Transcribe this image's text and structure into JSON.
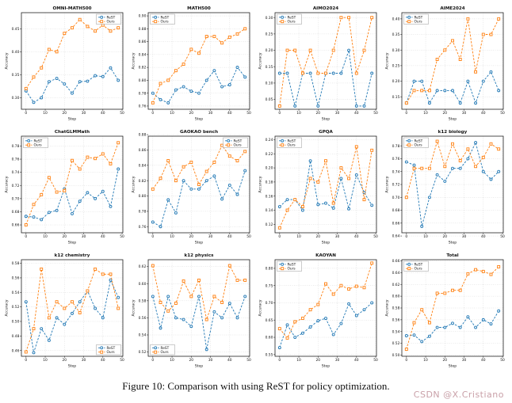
{
  "caption": "Figure 10: Comparison with using ReST for policy optimization.",
  "watermark": "CSDN @X.Cristiano",
  "colors": {
    "rest": "#1f77b4",
    "ours": "#ff7f0e",
    "grid": "#c8c8c8",
    "spine": "#222222"
  },
  "chart_data": [
    {
      "type": "line",
      "title": "OMNI-MATH500",
      "xlabel": "Step",
      "ylabel": "Accuracy",
      "x": [
        0,
        4,
        8,
        12,
        16,
        20,
        24,
        28,
        32,
        36,
        40,
        44,
        48
      ],
      "xticks": [
        0,
        10,
        20,
        30,
        40,
        50
      ],
      "yticks": [
        0.3,
        0.35,
        0.4,
        0.45
      ],
      "ylim": [
        0.275,
        0.485
      ],
      "legend_pos": "top-right",
      "series": [
        {
          "name": "ReST",
          "color": "#1f77b4",
          "marker": "circle",
          "values": [
            0.315,
            0.29,
            0.3,
            0.335,
            0.342,
            0.33,
            0.31,
            0.335,
            0.336,
            0.348,
            0.346,
            0.365,
            0.338
          ]
        },
        {
          "name": "Ours",
          "color": "#ff7f0e",
          "marker": "square",
          "values": [
            0.32,
            0.345,
            0.365,
            0.405,
            0.4,
            0.44,
            0.452,
            0.47,
            0.455,
            0.445,
            0.458,
            0.445,
            0.452
          ]
        }
      ]
    },
    {
      "type": "line",
      "title": "MATH500",
      "xlabel": "Step",
      "ylabel": "Accuracy",
      "x": [
        0,
        4,
        8,
        12,
        16,
        20,
        24,
        28,
        32,
        36,
        40,
        44,
        48
      ],
      "xticks": [
        0,
        10,
        20,
        30,
        40,
        50
      ],
      "yticks": [
        0.76,
        0.78,
        0.8,
        0.82,
        0.84,
        0.86,
        0.88,
        0.9
      ],
      "ylim": [
        0.755,
        0.905
      ],
      "legend_pos": "top-left",
      "series": [
        {
          "name": "ReST",
          "color": "#1f77b4",
          "marker": "circle",
          "values": [
            0.78,
            0.77,
            0.765,
            0.785,
            0.79,
            0.783,
            0.78,
            0.8,
            0.815,
            0.79,
            0.793,
            0.82,
            0.805
          ]
        },
        {
          "name": "Ours",
          "color": "#ff7f0e",
          "marker": "square",
          "values": [
            0.765,
            0.795,
            0.8,
            0.815,
            0.825,
            0.848,
            0.842,
            0.868,
            0.868,
            0.858,
            0.867,
            0.872,
            0.88
          ]
        }
      ]
    },
    {
      "type": "line",
      "title": "AIMO2024",
      "xlabel": "Step",
      "ylabel": "Accuracy",
      "x": [
        0,
        4,
        8,
        12,
        16,
        20,
        24,
        28,
        32,
        36,
        40,
        44,
        48
      ],
      "xticks": [
        0,
        10,
        20,
        30,
        40,
        50
      ],
      "yticks": [
        0.05,
        0.1,
        0.15,
        0.2,
        0.25,
        0.3
      ],
      "ylim": [
        0.02,
        0.315
      ],
      "legend_pos": "top-left",
      "series": [
        {
          "name": "ReST",
          "color": "#1f77b4",
          "marker": "circle",
          "values": [
            0.13,
            0.13,
            0.03,
            0.13,
            0.13,
            0.03,
            0.13,
            0.13,
            0.13,
            0.2,
            0.03,
            0.03,
            0.13
          ]
        },
        {
          "name": "Ours",
          "color": "#ff7f0e",
          "marker": "square",
          "values": [
            0.03,
            0.2,
            0.2,
            0.13,
            0.2,
            0.13,
            0.13,
            0.2,
            0.3,
            0.3,
            0.13,
            0.2,
            0.3
          ]
        }
      ]
    },
    {
      "type": "line",
      "title": "AIME2024",
      "xlabel": "Step",
      "ylabel": "Accuracy",
      "x": [
        0,
        4,
        8,
        12,
        16,
        20,
        24,
        28,
        32,
        36,
        40,
        44,
        48
      ],
      "xticks": [
        0,
        10,
        20,
        30,
        40,
        50
      ],
      "yticks": [
        0.15,
        0.2,
        0.25,
        0.3,
        0.35,
        0.4
      ],
      "ylim": [
        0.11,
        0.42
      ],
      "legend_pos": "top-left",
      "series": [
        {
          "name": "ReST",
          "color": "#1f77b4",
          "marker": "circle",
          "values": [
            0.13,
            0.2,
            0.2,
            0.13,
            0.17,
            0.17,
            0.17,
            0.13,
            0.2,
            0.13,
            0.2,
            0.23,
            0.17
          ]
        },
        {
          "name": "Ours",
          "color": "#ff7f0e",
          "marker": "square",
          "values": [
            0.13,
            0.17,
            0.17,
            0.17,
            0.27,
            0.3,
            0.33,
            0.27,
            0.4,
            0.23,
            0.35,
            0.35,
            0.4
          ]
        }
      ]
    },
    {
      "type": "line",
      "title": "ChatGLMMath",
      "xlabel": "Step",
      "ylabel": "Accuracy",
      "x": [
        0,
        4,
        8,
        12,
        16,
        20,
        24,
        28,
        32,
        36,
        40,
        44,
        48
      ],
      "xticks": [
        0,
        10,
        20,
        30,
        40,
        50
      ],
      "yticks": [
        0.66,
        0.68,
        0.7,
        0.72,
        0.74,
        0.76,
        0.78
      ],
      "ylim": [
        0.648,
        0.795
      ],
      "legend_pos": "top-left",
      "series": [
        {
          "name": "ReST",
          "color": "#1f77b4",
          "marker": "circle",
          "values": [
            0.673,
            0.672,
            0.668,
            0.679,
            0.682,
            0.715,
            0.677,
            0.696,
            0.709,
            0.7,
            0.711,
            0.688,
            0.745
          ]
        },
        {
          "name": "Ours",
          "color": "#ff7f0e",
          "marker": "square",
          "values": [
            0.66,
            0.691,
            0.706,
            0.732,
            0.71,
            0.712,
            0.758,
            0.745,
            0.763,
            0.761,
            0.768,
            0.753,
            0.785
          ]
        }
      ]
    },
    {
      "type": "line",
      "title": "GAOKAO bench",
      "xlabel": "Step",
      "ylabel": "Accuracy",
      "x": [
        0,
        4,
        8,
        12,
        16,
        20,
        24,
        28,
        32,
        36,
        40,
        44,
        48
      ],
      "xticks": [
        0,
        10,
        20,
        30,
        40,
        50
      ],
      "yticks": [
        0.76,
        0.78,
        0.8,
        0.82,
        0.84,
        0.86,
        0.88
      ],
      "ylim": [
        0.752,
        0.878
      ],
      "legend_pos": "top-right",
      "series": [
        {
          "name": "ReST",
          "color": "#1f77b4",
          "marker": "circle",
          "values": [
            0.766,
            0.76,
            0.795,
            0.778,
            0.82,
            0.809,
            0.809,
            0.82,
            0.826,
            0.796,
            0.814,
            0.802,
            0.833
          ]
        },
        {
          "name": "Ours",
          "color": "#ff7f0e",
          "marker": "square",
          "values": [
            0.809,
            0.823,
            0.846,
            0.82,
            0.838,
            0.844,
            0.815,
            0.832,
            0.844,
            0.866,
            0.852,
            0.846,
            0.858
          ]
        }
      ]
    },
    {
      "type": "line",
      "title": "GPQA",
      "xlabel": "Step",
      "ylabel": "Accuracy",
      "x": [
        0,
        4,
        8,
        12,
        16,
        20,
        24,
        28,
        32,
        36,
        40,
        44,
        48
      ],
      "xticks": [
        0,
        10,
        20,
        30,
        40,
        50
      ],
      "yticks": [
        0.12,
        0.14,
        0.16,
        0.18,
        0.2,
        0.22,
        0.24
      ],
      "ylim": [
        0.108,
        0.245
      ],
      "legend_pos": "top-left",
      "series": [
        {
          "name": "ReST",
          "color": "#1f77b4",
          "marker": "circle",
          "values": [
            0.145,
            0.155,
            0.155,
            0.14,
            0.21,
            0.148,
            0.15,
            0.143,
            0.185,
            0.142,
            0.19,
            0.165,
            0.147
          ]
        },
        {
          "name": "Ours",
          "color": "#ff7f0e",
          "marker": "square",
          "values": [
            0.115,
            0.14,
            0.155,
            0.145,
            0.185,
            0.18,
            0.21,
            0.15,
            0.2,
            0.185,
            0.23,
            0.155,
            0.225
          ]
        }
      ]
    },
    {
      "type": "line",
      "title": "k12 biology",
      "xlabel": "Step",
      "ylabel": "Accuracy",
      "x": [
        0,
        4,
        8,
        12,
        16,
        20,
        24,
        28,
        32,
        36,
        40,
        44,
        48
      ],
      "xticks": [
        0,
        10,
        20,
        30,
        40,
        50
      ],
      "yticks": [
        0.64,
        0.66,
        0.68,
        0.7,
        0.72,
        0.74,
        0.76,
        0.78
      ],
      "ylim": [
        0.645,
        0.795
      ],
      "legend_pos": "top-left",
      "series": [
        {
          "name": "ReST",
          "color": "#1f77b4",
          "marker": "circle",
          "values": [
            0.755,
            0.75,
            0.655,
            0.7,
            0.735,
            0.725,
            0.745,
            0.745,
            0.76,
            0.785,
            0.74,
            0.728,
            0.74
          ]
        },
        {
          "name": "Ours",
          "color": "#ff7f0e",
          "marker": "square",
          "values": [
            0.7,
            0.745,
            0.745,
            0.745,
            0.787,
            0.748,
            0.783,
            0.757,
            0.775,
            0.748,
            0.762,
            0.783,
            0.775
          ]
        }
      ]
    },
    {
      "type": "line",
      "title": "k12 chemistry",
      "xlabel": "Step",
      "ylabel": "Accuracy",
      "x": [
        0,
        4,
        8,
        12,
        16,
        20,
        24,
        28,
        32,
        36,
        40,
        44,
        48
      ],
      "xticks": [
        0,
        10,
        20,
        30,
        40,
        50
      ],
      "yticks": [
        0.46,
        0.48,
        0.5,
        0.52,
        0.54,
        0.56,
        0.58
      ],
      "ylim": [
        0.452,
        0.585
      ],
      "legend_pos": "bottom-right",
      "series": [
        {
          "name": "ReST",
          "color": "#1f77b4",
          "marker": "circle",
          "values": [
            0.527,
            0.457,
            0.49,
            0.474,
            0.505,
            0.496,
            0.511,
            0.527,
            0.542,
            0.518,
            0.505,
            0.557,
            0.533
          ]
        },
        {
          "name": "Ours",
          "color": "#ff7f0e",
          "marker": "square",
          "values": [
            0.458,
            0.49,
            0.572,
            0.505,
            0.527,
            0.518,
            0.527,
            0.512,
            0.542,
            0.572,
            0.565,
            0.565,
            0.518
          ]
        }
      ]
    },
    {
      "type": "line",
      "title": "k12 physics",
      "xlabel": "Step",
      "ylabel": "Accuracy",
      "x": [
        0,
        4,
        8,
        12,
        16,
        20,
        24,
        28,
        32,
        36,
        40,
        44,
        48
      ],
      "xticks": [
        0,
        10,
        20,
        30,
        40,
        50
      ],
      "yticks": [
        0.52,
        0.54,
        0.56,
        0.58,
        0.6,
        0.62
      ],
      "ylim": [
        0.515,
        0.628
      ],
      "legend_pos": "bottom-left",
      "series": [
        {
          "name": "ReST",
          "color": "#1f77b4",
          "marker": "circle",
          "values": [
            0.585,
            0.548,
            0.585,
            0.56,
            0.558,
            0.55,
            0.585,
            0.523,
            0.567,
            0.56,
            0.577,
            0.56,
            0.585
          ]
        },
        {
          "name": "Ours",
          "color": "#ff7f0e",
          "marker": "square",
          "values": [
            0.621,
            0.578,
            0.568,
            0.577,
            0.603,
            0.585,
            0.604,
            0.558,
            0.585,
            0.578,
            0.621,
            0.604,
            0.604
          ]
        }
      ]
    },
    {
      "type": "line",
      "title": "KAOYAN",
      "xlabel": "Step",
      "ylabel": "Accuracy",
      "x": [
        0,
        4,
        8,
        12,
        16,
        20,
        24,
        28,
        32,
        36,
        40,
        44,
        48
      ],
      "xticks": [
        0,
        10,
        20,
        30,
        40,
        50
      ],
      "yticks": [
        0.55,
        0.6,
        0.65,
        0.7,
        0.75,
        0.8
      ],
      "ylim": [
        0.545,
        0.825
      ],
      "legend_pos": "top-left",
      "series": [
        {
          "name": "ReST",
          "color": "#1f77b4",
          "marker": "circle",
          "values": [
            0.57,
            0.636,
            0.6,
            0.612,
            0.63,
            0.648,
            0.655,
            0.608,
            0.64,
            0.697,
            0.663,
            0.68,
            0.7
          ]
        },
        {
          "name": "Ours",
          "color": "#ff7f0e",
          "marker": "square",
          "values": [
            0.625,
            0.598,
            0.645,
            0.655,
            0.68,
            0.695,
            0.755,
            0.725,
            0.75,
            0.74,
            0.748,
            0.744,
            0.815
          ]
        }
      ]
    },
    {
      "type": "line",
      "title": "Total",
      "xlabel": "Step",
      "ylabel": "Accuracy",
      "x": [
        0,
        4,
        8,
        12,
        16,
        20,
        24,
        28,
        32,
        36,
        40,
        44,
        48
      ],
      "xticks": [
        0,
        10,
        20,
        30,
        40,
        50
      ],
      "yticks": [
        0.5,
        0.52,
        0.54,
        0.56,
        0.58,
        0.6,
        0.62,
        0.64,
        0.66
      ],
      "ylim": [
        0.498,
        0.662
      ],
      "legend_pos": "top-left",
      "series": [
        {
          "name": "ReST",
          "color": "#1f77b4",
          "marker": "circle",
          "values": [
            0.533,
            0.534,
            0.523,
            0.532,
            0.547,
            0.547,
            0.554,
            0.547,
            0.565,
            0.547,
            0.56,
            0.553,
            0.575
          ]
        },
        {
          "name": "Ours",
          "color": "#ff7f0e",
          "marker": "square",
          "values": [
            0.51,
            0.555,
            0.577,
            0.555,
            0.605,
            0.605,
            0.61,
            0.61,
            0.638,
            0.645,
            0.642,
            0.637,
            0.65
          ]
        }
      ]
    }
  ]
}
